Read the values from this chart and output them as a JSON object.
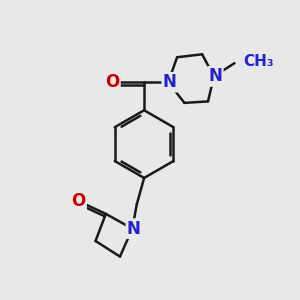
{
  "bg_color": "#e8e8e8",
  "bond_color": "#1a1a1a",
  "N_color": "#2222cc",
  "O_color": "#cc0000",
  "bond_width": 1.8,
  "font_size_atom": 12,
  "font_size_methyl": 11,
  "xlim": [
    0,
    10
  ],
  "ylim": [
    0,
    10
  ]
}
